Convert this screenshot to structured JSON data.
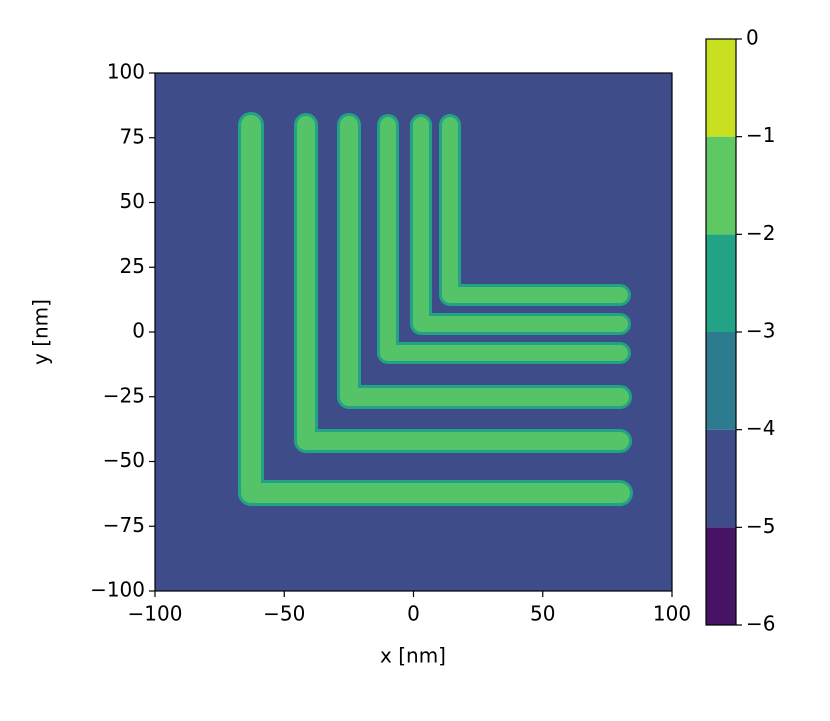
{
  "chart_data": {
    "type": "contourf",
    "xlabel": "x [nm]",
    "ylabel": "y [nm]",
    "xlim": [
      -100,
      100
    ],
    "ylim": [
      -100,
      100
    ],
    "xticks": [
      {
        "value": -100,
        "label": "−100"
      },
      {
        "value": -50,
        "label": "−50"
      },
      0,
      50,
      100
    ],
    "yticks": [
      {
        "value": -100,
        "label": "−100"
      },
      {
        "value": -75,
        "label": "−75"
      },
      {
        "value": -50,
        "label": "−50"
      },
      {
        "value": -25,
        "label": "−25"
      },
      0,
      25,
      50,
      75,
      100
    ],
    "colorbar": {
      "lim": [
        -6,
        0
      ],
      "ticks": [
        {
          "value": -6,
          "label": "−6"
        },
        {
          "value": -5,
          "label": "−5"
        },
        {
          "value": -4,
          "label": "−4"
        },
        {
          "value": -3,
          "label": "−3"
        },
        {
          "value": -2,
          "label": "−2"
        },
        {
          "value": -1,
          "label": "−1"
        },
        0
      ],
      "levels": [
        -6,
        -5,
        -4,
        -3,
        -2,
        -1,
        0
      ],
      "colors": [
        "#471365",
        "#3e4c8a",
        "#2c7b8e",
        "#22a385",
        "#5ec962",
        "#c8e020"
      ]
    }
  }
}
